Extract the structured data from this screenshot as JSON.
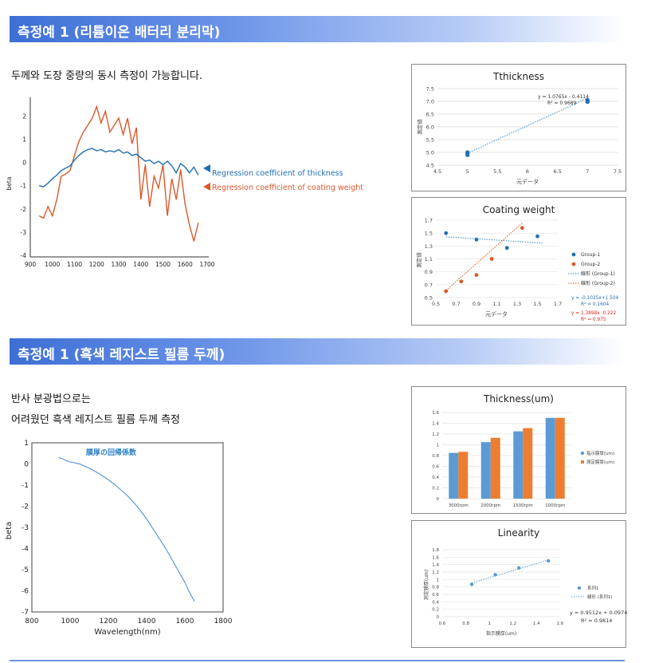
{
  "section1": {
    "title": "측정예 1 (리튬이온 배터리 분리막)",
    "desc": "두께와 도장 중량의 동시 측정이 가능합니다.",
    "main_chart": {
      "ylabel": "beta",
      "x_ticks": [
        "900",
        "1000",
        "1100",
        "1200",
        "1300",
        "1400",
        "1500",
        "1600",
        "1700"
      ],
      "y_ticks": [
        "2",
        "1",
        "0",
        "-1",
        "-2",
        "-3",
        "-4"
      ],
      "legend_thickness": "Regression coefficient of thickness",
      "legend_coating": "Regression coefficient of coating weight",
      "color_thickness": "#1f6fb4",
      "color_coating": "#d9582b"
    },
    "thickness_chart": {
      "title": "Tthickness",
      "xlabel": "元データ",
      "ylabel": "測定値",
      "x_ticks": [
        "4.5",
        "5",
        "5.5",
        "6",
        "6.5",
        "7",
        "7.5"
      ],
      "y_ticks": [
        "7.5",
        "7.0",
        "6.5",
        "6.0",
        "5.5",
        "5.0",
        "4.5"
      ],
      "eq_line1": "y = 1.0765x - 0.4114",
      "eq_line2": "R² = 0.9689"
    },
    "coating_chart": {
      "title": "Coating weight",
      "xlabel": "元データ",
      "ylabel": "測定値",
      "x_ticks": [
        "0.5",
        "0.7",
        "0.9",
        "1.1",
        "1.3",
        "1.5",
        "1.7"
      ],
      "y_ticks": [
        "1.7",
        "1.5",
        "1.3",
        "1.1",
        "0.9",
        "0.7",
        "0.5"
      ],
      "legend": [
        "Group-1",
        "Group-2",
        "線形 (Group-1)",
        "線形 (Group-2)"
      ],
      "eq1_line1": "y = -0.1025x+1.504",
      "eq1_line2": "R² = 0.1604",
      "eq2_line1": "y = 1.3898x -0.222",
      "eq2_line2": "R² = 0.975",
      "color_g1": "#1f6fb4",
      "color_g2": "#d9582b"
    }
  },
  "section2": {
    "title": "측정예 1 (흑색 레지스트 필름 두께)",
    "desc_line1": "반사 분광법으로는",
    "desc_line2": "어려웠던 흑색 레지스트 필름 두께 측정",
    "main_chart": {
      "series_label": "膜厚の回帰係数",
      "xlabel": "Wavelength(nm)",
      "ylabel": "beta",
      "x_ticks": [
        "800",
        "1000",
        "1200",
        "1400",
        "1600",
        "1800"
      ],
      "y_ticks": [
        "1",
        "0",
        "-1",
        "-2",
        "-3",
        "-4",
        "-5",
        "-6",
        "-7"
      ],
      "color": "#5b9bd5"
    },
    "thickness_bar": {
      "title": "Thickness(um)",
      "categories": [
        "3000rpm",
        "2000rpm",
        "1500rpm",
        "1000rpm"
      ],
      "y_ticks": [
        "1.6",
        "1.4",
        "1.2",
        "1",
        "0.8",
        "0.6",
        "0.4",
        "0.2",
        "0"
      ],
      "legend": [
        "指示膜厚(um)",
        "測定膜厚(um)"
      ],
      "color_a": "#5b9bd5",
      "color_b": "#ed7d31"
    },
    "linearity_chart": {
      "title": "Linearity",
      "xlabel": "指示膜厚(um)",
      "ylabel": "測定膜厚(um)",
      "x_ticks": [
        "0.6",
        "0.8",
        "1",
        "1.2",
        "1.4",
        "1.6"
      ],
      "y_ticks": [
        "1.8",
        "1.6",
        "1.4",
        "1.2",
        "1",
        "0.8",
        "0.6",
        "0.4",
        "0.2",
        "0"
      ],
      "legend": [
        "系列1",
        "線形 (系列1)"
      ],
      "eq_line1": "y = 0.9512x + 0.0974",
      "eq_line2": "R² = 0.9814"
    }
  },
  "chart_data": [
    {
      "type": "line",
      "xlim": [
        900,
        1700
      ],
      "ylim": [
        -4,
        2.8
      ],
      "series": [
        {
          "name": "Regression coefficient of thickness",
          "x": [
            940,
            960,
            980,
            1000,
            1020,
            1040,
            1060,
            1080,
            1100,
            1120,
            1140,
            1160,
            1180,
            1200,
            1220,
            1240,
            1260,
            1280,
            1300,
            1320,
            1340,
            1360,
            1380,
            1400,
            1420,
            1440,
            1460,
            1480,
            1500,
            1520,
            1540,
            1560,
            1580,
            1600,
            1620,
            1640,
            1660
          ],
          "values": [
            -1.0,
            -1.05,
            -0.9,
            -0.7,
            -0.55,
            -0.35,
            -0.25,
            -0.15,
            0.1,
            0.3,
            0.45,
            0.55,
            0.6,
            0.5,
            0.55,
            0.45,
            0.5,
            0.45,
            0.55,
            0.4,
            0.45,
            0.3,
            0.35,
            0.2,
            0.05,
            0.1,
            -0.05,
            0.05,
            -0.1,
            0.05,
            -0.15,
            -0.45,
            -0.05,
            -0.2,
            -0.45,
            -0.2,
            -0.55
          ]
        },
        {
          "name": "Regression coefficient of coating weight",
          "x": [
            940,
            960,
            980,
            1000,
            1020,
            1040,
            1060,
            1080,
            1100,
            1120,
            1140,
            1160,
            1180,
            1200,
            1220,
            1240,
            1260,
            1280,
            1300,
            1320,
            1340,
            1360,
            1380,
            1400,
            1420,
            1440,
            1460,
            1480,
            1500,
            1520,
            1540,
            1560,
            1580,
            1600,
            1620,
            1640,
            1660
          ],
          "values": [
            -2.3,
            -2.4,
            -1.9,
            -2.3,
            -1.6,
            -0.6,
            -0.5,
            -0.35,
            0.3,
            0.9,
            1.3,
            1.6,
            1.9,
            2.4,
            1.7,
            2.2,
            1.3,
            1.6,
            1.9,
            1.2,
            1.9,
            0.8,
            1.5,
            -1.6,
            -0.1,
            -1.9,
            -0.6,
            -1.1,
            -0.1,
            -2.3,
            -0.7,
            -1.6,
            -0.3,
            -1.8,
            -2.7,
            -3.4,
            -2.6
          ]
        }
      ]
    },
    {
      "type": "scatter",
      "title": "Tthickness",
      "xlabel": "元データ",
      "ylabel": "測定値",
      "xlim": [
        4.5,
        7.5
      ],
      "ylim": [
        4.5,
        7.5
      ],
      "points": [
        {
          "x": 5,
          "y": 4.95
        },
        {
          "x": 5,
          "y": 5.0
        },
        {
          "x": 5,
          "y": 4.9
        },
        {
          "x": 7,
          "y": 7.0
        },
        {
          "x": 7,
          "y": 7.05
        },
        {
          "x": 7,
          "y": 6.98
        }
      ],
      "trend": {
        "slope": 1.0765,
        "intercept": -0.4114,
        "r2": 0.9689
      }
    },
    {
      "type": "scatter",
      "title": "Coating weight",
      "xlabel": "元データ",
      "ylabel": "測定値",
      "xlim": [
        0.5,
        1.7
      ],
      "ylim": [
        0.5,
        1.7
      ],
      "series": [
        {
          "name": "Group-1",
          "points": [
            {
              "x": 0.6,
              "y": 1.5
            },
            {
              "x": 0.9,
              "y": 1.4
            },
            {
              "x": 1.2,
              "y": 1.27
            },
            {
              "x": 1.5,
              "y": 1.45
            }
          ],
          "trend": {
            "slope": -0.1025,
            "intercept": 1.504,
            "r2": 0.1604
          }
        },
        {
          "name": "Group-2",
          "points": [
            {
              "x": 0.6,
              "y": 0.6
            },
            {
              "x": 0.75,
              "y": 0.75
            },
            {
              "x": 0.9,
              "y": 0.85
            },
            {
              "x": 1.05,
              "y": 1.1
            },
            {
              "x": 1.35,
              "y": 1.58
            }
          ],
          "trend": {
            "slope": 1.3898,
            "intercept": -0.222,
            "r2": 0.975
          }
        }
      ]
    },
    {
      "type": "line",
      "xlabel": "Wavelength(nm)",
      "ylabel": "beta",
      "xlim": [
        800,
        1800
      ],
      "ylim": [
        -7,
        1
      ],
      "series": [
        {
          "name": "膜厚の回帰係数",
          "x": [
            940,
            960,
            980,
            1000,
            1050,
            1100,
            1150,
            1200,
            1250,
            1300,
            1350,
            1400,
            1450,
            1500,
            1550,
            1600,
            1620,
            1650
          ],
          "values": [
            0.3,
            0.25,
            0.15,
            0.1,
            0.0,
            -0.2,
            -0.45,
            -0.75,
            -1.1,
            -1.5,
            -2.0,
            -2.6,
            -3.3,
            -4.0,
            -4.8,
            -5.6,
            -6.0,
            -6.5
          ]
        }
      ]
    },
    {
      "type": "bar",
      "title": "Thickness(um)",
      "categories": [
        "3000rpm",
        "2000rpm",
        "1500rpm",
        "1000rpm"
      ],
      "ylim": [
        0,
        1.6
      ],
      "series": [
        {
          "name": "指示膜厚(um)",
          "values": [
            0.85,
            1.05,
            1.25,
            1.5
          ]
        },
        {
          "name": "測定膜厚(um)",
          "values": [
            0.87,
            1.13,
            1.31,
            1.5
          ]
        }
      ]
    },
    {
      "type": "scatter",
      "title": "Linearity",
      "xlabel": "指示膜厚(um)",
      "ylabel": "測定膜厚(um)",
      "xlim": [
        0.6,
        1.6
      ],
      "ylim": [
        0,
        1.8
      ],
      "series": [
        {
          "name": "系列1",
          "points": [
            {
              "x": 0.85,
              "y": 0.87
            },
            {
              "x": 1.05,
              "y": 1.13
            },
            {
              "x": 1.25,
              "y": 1.31
            },
            {
              "x": 1.5,
              "y": 1.5
            }
          ],
          "trend": {
            "slope": 0.9512,
            "intercept": 0.0974,
            "r2": 0.9814
          }
        }
      ]
    }
  ]
}
